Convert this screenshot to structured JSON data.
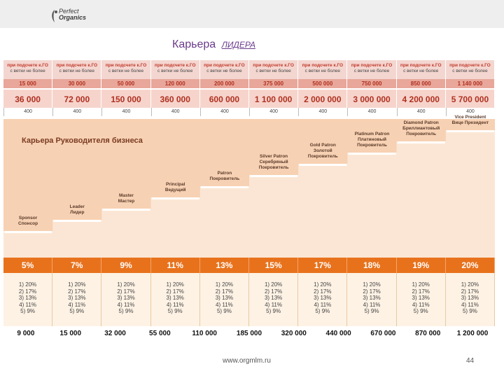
{
  "header": {
    "logo_line1": "Perfect",
    "logo_line2": "Organics"
  },
  "title": {
    "main": "Карьера",
    "sub": "ЛИДЕРА"
  },
  "leader_table": {
    "condition_line1": "при подсчете к.ГО",
    "condition_line2": "с ветки не более",
    "limits": [
      "15 000",
      "30 000",
      "50 000",
      "120 000",
      "200 000",
      "375 000",
      "500 000",
      "750 000",
      "850 000",
      "1 140 000"
    ],
    "volumes": [
      "36 000",
      "72 000",
      "150 000",
      "360 000",
      "600 000",
      "1 100 000",
      "2 000 000",
      "3 000 000",
      "4 200 000",
      "5 700 000"
    ],
    "min_points": [
      "400",
      "400",
      "400",
      "400",
      "400",
      "400",
      "400",
      "400",
      "400",
      "400"
    ]
  },
  "business_career": {
    "title": "Карьера Руководителя бизнеса",
    "ranks": [
      {
        "en": "Sponsor",
        "ru": "Спонсор"
      },
      {
        "en": "Leader",
        "ru": "Лидер"
      },
      {
        "en": "Master",
        "ru": "Мастер"
      },
      {
        "en": "Principal",
        "ru": "Ведущий"
      },
      {
        "en": "Patron",
        "ru": "Покровитель"
      },
      {
        "en": "Silver Patron",
        "ru": "Серебряный Покровитель"
      },
      {
        "en": "Gold Patron",
        "ru": "Золотой Покровитель"
      },
      {
        "en": "Platinum Patron",
        "ru": "Платиновый Покровитель"
      },
      {
        "en": "Diamond Patron",
        "ru": "Бриллиантовый Покровитель"
      },
      {
        "en": "Vice President",
        "ru": "Вице Президент"
      }
    ]
  },
  "percentages": [
    "5%",
    "7%",
    "9%",
    "11%",
    "13%",
    "15%",
    "17%",
    "18%",
    "19%",
    "20%"
  ],
  "generation_bonus": [
    "1) 20%",
    "2) 17%",
    "3) 13%",
    "4) 11%",
    "5) 9%"
  ],
  "bottom_values": [
    "9 000",
    "15 000",
    "32 000",
    "55 000",
    "110 000",
    "185 000",
    "320 000",
    "440 000",
    "670 000",
    "870 000",
    "1 200 000"
  ],
  "footer": {
    "url": "www.orgmlm.ru",
    "page": "44"
  },
  "colors": {
    "title_purple": "#6a3a8a",
    "red_header": "#e8a79a",
    "volume_red": "#b03020",
    "orange_bar": "#e8721c",
    "stairs_peach": "#f7d1b3"
  }
}
